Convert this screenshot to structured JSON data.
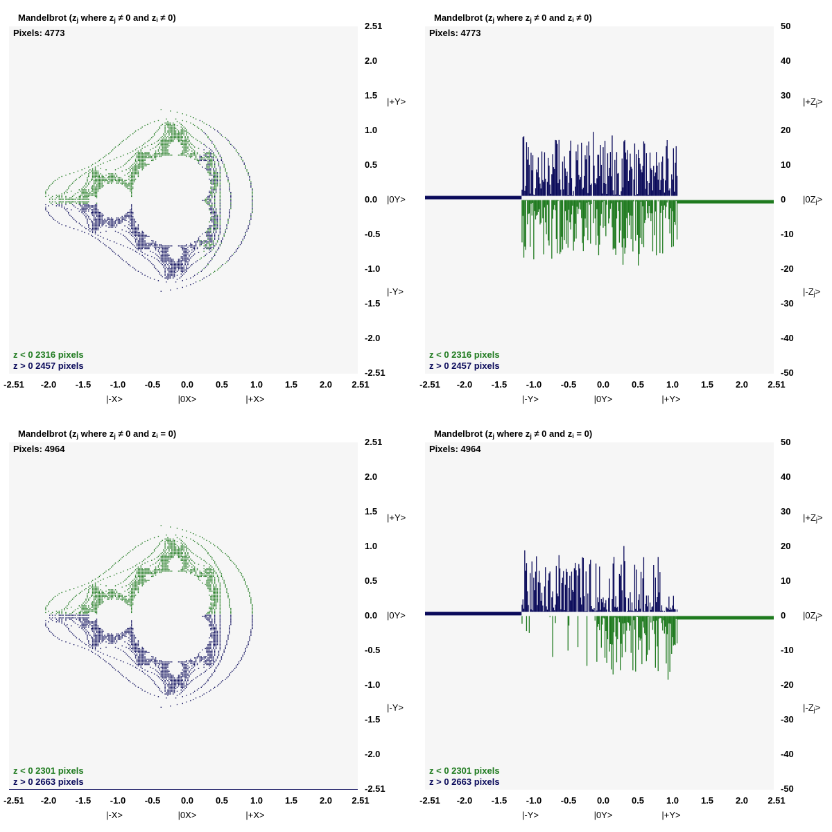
{
  "colors": {
    "negative": "#1e7a1e",
    "positive": "#0a0a5a",
    "panel_bg": "#f6f6f6"
  },
  "chart_data": [
    {
      "type": "scatter",
      "title": "Mandelbrot (zj where zj ≠ 0 and zi ≠ 0)",
      "title_parts": {
        "a": "Mandelbrot (z",
        "b": "j",
        "c": " where z",
        "d": "j",
        "e": " ≠ 0 and z",
        "f": "i",
        "g": " ≠ 0)"
      },
      "pixels_label": "Pixels: 4773",
      "legend": {
        "neg": "z < 0  2316 pixels",
        "pos": "z > 0  2457 pixels"
      },
      "xlim": [
        -2.51,
        2.51
      ],
      "ylim": [
        -2.51,
        2.51
      ],
      "x_ticks": [
        "-2.51",
        "-2.0",
        "-1.5",
        "-1.0",
        "-0.5",
        "0.0",
        "0.5",
        "1.0",
        "1.5",
        "2.0",
        "2.51"
      ],
      "y_ticks": [
        "2.51",
        "2.0",
        "1.5",
        "1.0",
        "0.5",
        "0.0",
        "-0.5",
        "-1.0",
        "-1.5",
        "-2.0",
        "-2.51"
      ],
      "x_kets": [
        "|-X>",
        "|0X>",
        "|+X>"
      ],
      "y_kets": [
        "|+Y>",
        "|0Y>",
        "|-Y>"
      ],
      "mode": "ne"
    },
    {
      "type": "bar",
      "title": "Mandelbrot (zj where zj ≠ 0 and zi ≠ 0)",
      "title_parts": {
        "a": "Mandelbrot (z",
        "b": "j",
        "c": " where z",
        "d": "j",
        "e": " ≠ 0 and z",
        "f": "i",
        "g": " ≠ 0)"
      },
      "pixels_label": "Pixels: 4773",
      "legend": {
        "neg": "z < 0  2316 pixels",
        "pos": "z > 0  2457 pixels"
      },
      "xlim": [
        -2.51,
        2.51
      ],
      "ylim": [
        -50,
        50
      ],
      "x_ticks": [
        "-2.51",
        "-2.0",
        "-1.5",
        "-1.0",
        "-0.5",
        "0.0",
        "0.5",
        "1.0",
        "1.5",
        "2.0",
        "2.51"
      ],
      "y_ticks": [
        "50",
        "40",
        "30",
        "20",
        "10",
        "0",
        "-10",
        "-20",
        "-30",
        "-40",
        "-50"
      ],
      "x_kets": [
        "|-Y>",
        "|0Y>",
        "|+Y>"
      ],
      "y_kets": [
        {
          "pre": "|+Z",
          "sub": "j",
          "post": ">"
        },
        {
          "pre": "|0Z",
          "sub": "j",
          "post": ">"
        },
        {
          "pre": "|-Z",
          "sub": "j",
          "post": ">"
        }
      ],
      "bar_x_range": [
        -1.12,
        1.12
      ],
      "series": [
        {
          "name": "z > 0",
          "peak": 19,
          "typical": 8
        },
        {
          "name": "z < 0",
          "peak": -19,
          "typical": -9
        }
      ],
      "mode": "ne"
    },
    {
      "type": "scatter",
      "title": "Mandelbrot (zj where zj ≠ 0 and zi = 0)",
      "title_parts": {
        "a": "Mandelbrot (z",
        "b": "j",
        "c": " where z",
        "d": "j",
        "e": " ≠ 0 and z",
        "f": "i",
        "g": " = 0)"
      },
      "pixels_label": "Pixels: 4964",
      "legend": {
        "neg": "z < 0  2301 pixels",
        "pos": "z > 0  2663 pixels"
      },
      "xlim": [
        -2.51,
        2.51
      ],
      "ylim": [
        -2.51,
        2.51
      ],
      "x_ticks": [
        "-2.51",
        "-2.0",
        "-1.5",
        "-1.0",
        "-0.5",
        "0.0",
        "0.5",
        "1.0",
        "1.5",
        "2.0",
        "2.51"
      ],
      "y_ticks": [
        "2.51",
        "2.0",
        "1.5",
        "1.0",
        "0.5",
        "0.0",
        "-0.5",
        "-1.0",
        "-1.5",
        "-2.0",
        "-2.51"
      ],
      "x_kets": [
        "|-X>",
        "|0X>",
        "|+X>"
      ],
      "y_kets": [
        "|+Y>",
        "|0Y>",
        "|-Y>"
      ],
      "mode": "eq"
    },
    {
      "type": "bar",
      "title": "Mandelbrot (zj where zj ≠ 0 and zi = 0)",
      "title_parts": {
        "a": "Mandelbrot (z",
        "b": "j",
        "c": " where z",
        "d": "j",
        "e": " ≠ 0 and z",
        "f": "i",
        "g": " = 0)"
      },
      "pixels_label": "Pixels: 4964",
      "legend": {
        "neg": "z < 0  2301 pixels",
        "pos": "z > 0  2663 pixels"
      },
      "xlim": [
        -2.51,
        2.51
      ],
      "ylim": [
        -50,
        50
      ],
      "x_ticks": [
        "-2.51",
        "-2.0",
        "-1.5",
        "-1.0",
        "-0.5",
        "0.0",
        "0.5",
        "1.0",
        "1.5",
        "2.0",
        "2.51"
      ],
      "y_ticks": [
        "50",
        "40",
        "30",
        "20",
        "10",
        "0",
        "-10",
        "-20",
        "-30",
        "-40",
        "-50"
      ],
      "x_kets": [
        "|-Y>",
        "|0Y>",
        "|+Y>"
      ],
      "y_kets": [
        {
          "pre": "|+Z",
          "sub": "j",
          "post": ">"
        },
        {
          "pre": "|0Z",
          "sub": "j",
          "post": ">"
        },
        {
          "pre": "|-Z",
          "sub": "j",
          "post": ">"
        }
      ],
      "bar_x_range": [
        -1.12,
        1.12
      ],
      "series": [
        {
          "name": "z > 0",
          "peak": 19,
          "typical": 6
        },
        {
          "name": "z < 0",
          "peak": -19,
          "typical": -5
        }
      ],
      "mode": "eq"
    }
  ]
}
